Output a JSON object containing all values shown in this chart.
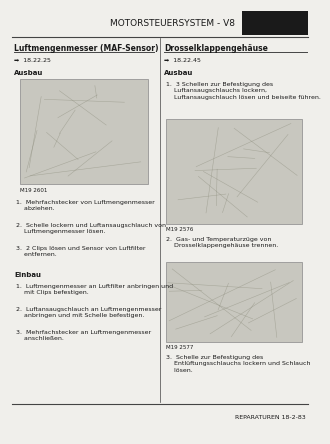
{
  "bg_color": "#f0efeb",
  "title_text": "MOTORSTEUERSYSTEM - V8",
  "title_fontsize": 6.5,
  "footer_text": "REPARATUREN 18-2-83",
  "footer_fontsize": 4.5,
  "left_col": {
    "heading": "Luftmengenmesser (MAF-Sensor)",
    "heading_fontsize": 5.5,
    "ref": "➡  18.22.25",
    "ref_fontsize": 4.5,
    "ausbau_label": "Ausbau",
    "section_fontsize": 5.0,
    "image_caption": "M19 2601",
    "caption_fontsize": 4.0,
    "ausbau_steps": [
      "1.  Mehrfachstecker von Luftmengenmesser\n    abziehen.",
      "2.  Schelle lockern und Luftansaugschlauch von\n    Luftmengenmesser lösen.",
      "3.  2 Clips lösen und Sensor von Luftfilter\n    entfernen."
    ],
    "einbau_label": "Einbau",
    "einbau_steps": [
      "1.  Luftmengenmesser an Luftfilter anbringen und\n    mit Clips befestigen.",
      "2.  Luftansaugschlauch an Luftmengenmesser\n    anbringen und mit Schelle befestigen.",
      "3.  Mehrfachstecker an Luftmengenmesser\n    anschließen."
    ]
  },
  "right_col": {
    "heading": "Drosselklappengehäuse",
    "heading_fontsize": 5.5,
    "ref": "➡  18.22.45",
    "ref_fontsize": 4.5,
    "ausbau_label": "Ausbau",
    "section_fontsize": 5.0,
    "image1_caption": "M19 2576",
    "image2_caption": "M19 2577",
    "caption_fontsize": 4.0,
    "step1_text": "1.  3 Schellen zur Befestigung des\n    Luftansaugschlauchs lockern,\n    Luftansaugschlauch lösen und beiseite führen.",
    "step2_text": "2.  Gas- und Temperaturzüge von\n    Drosselklappengehäuse trennen.",
    "step3_text": "3.  Schelle zur Befestigung des\n    Entlüftungsschlauchs lockern und Schlauch\n    lösen."
  },
  "step_fontsize": 4.5,
  "text_color": "#1a1a1a",
  "line_color": "#444444",
  "image_bg": "#c8c7bf",
  "icon_bg": "#1a1a1a"
}
